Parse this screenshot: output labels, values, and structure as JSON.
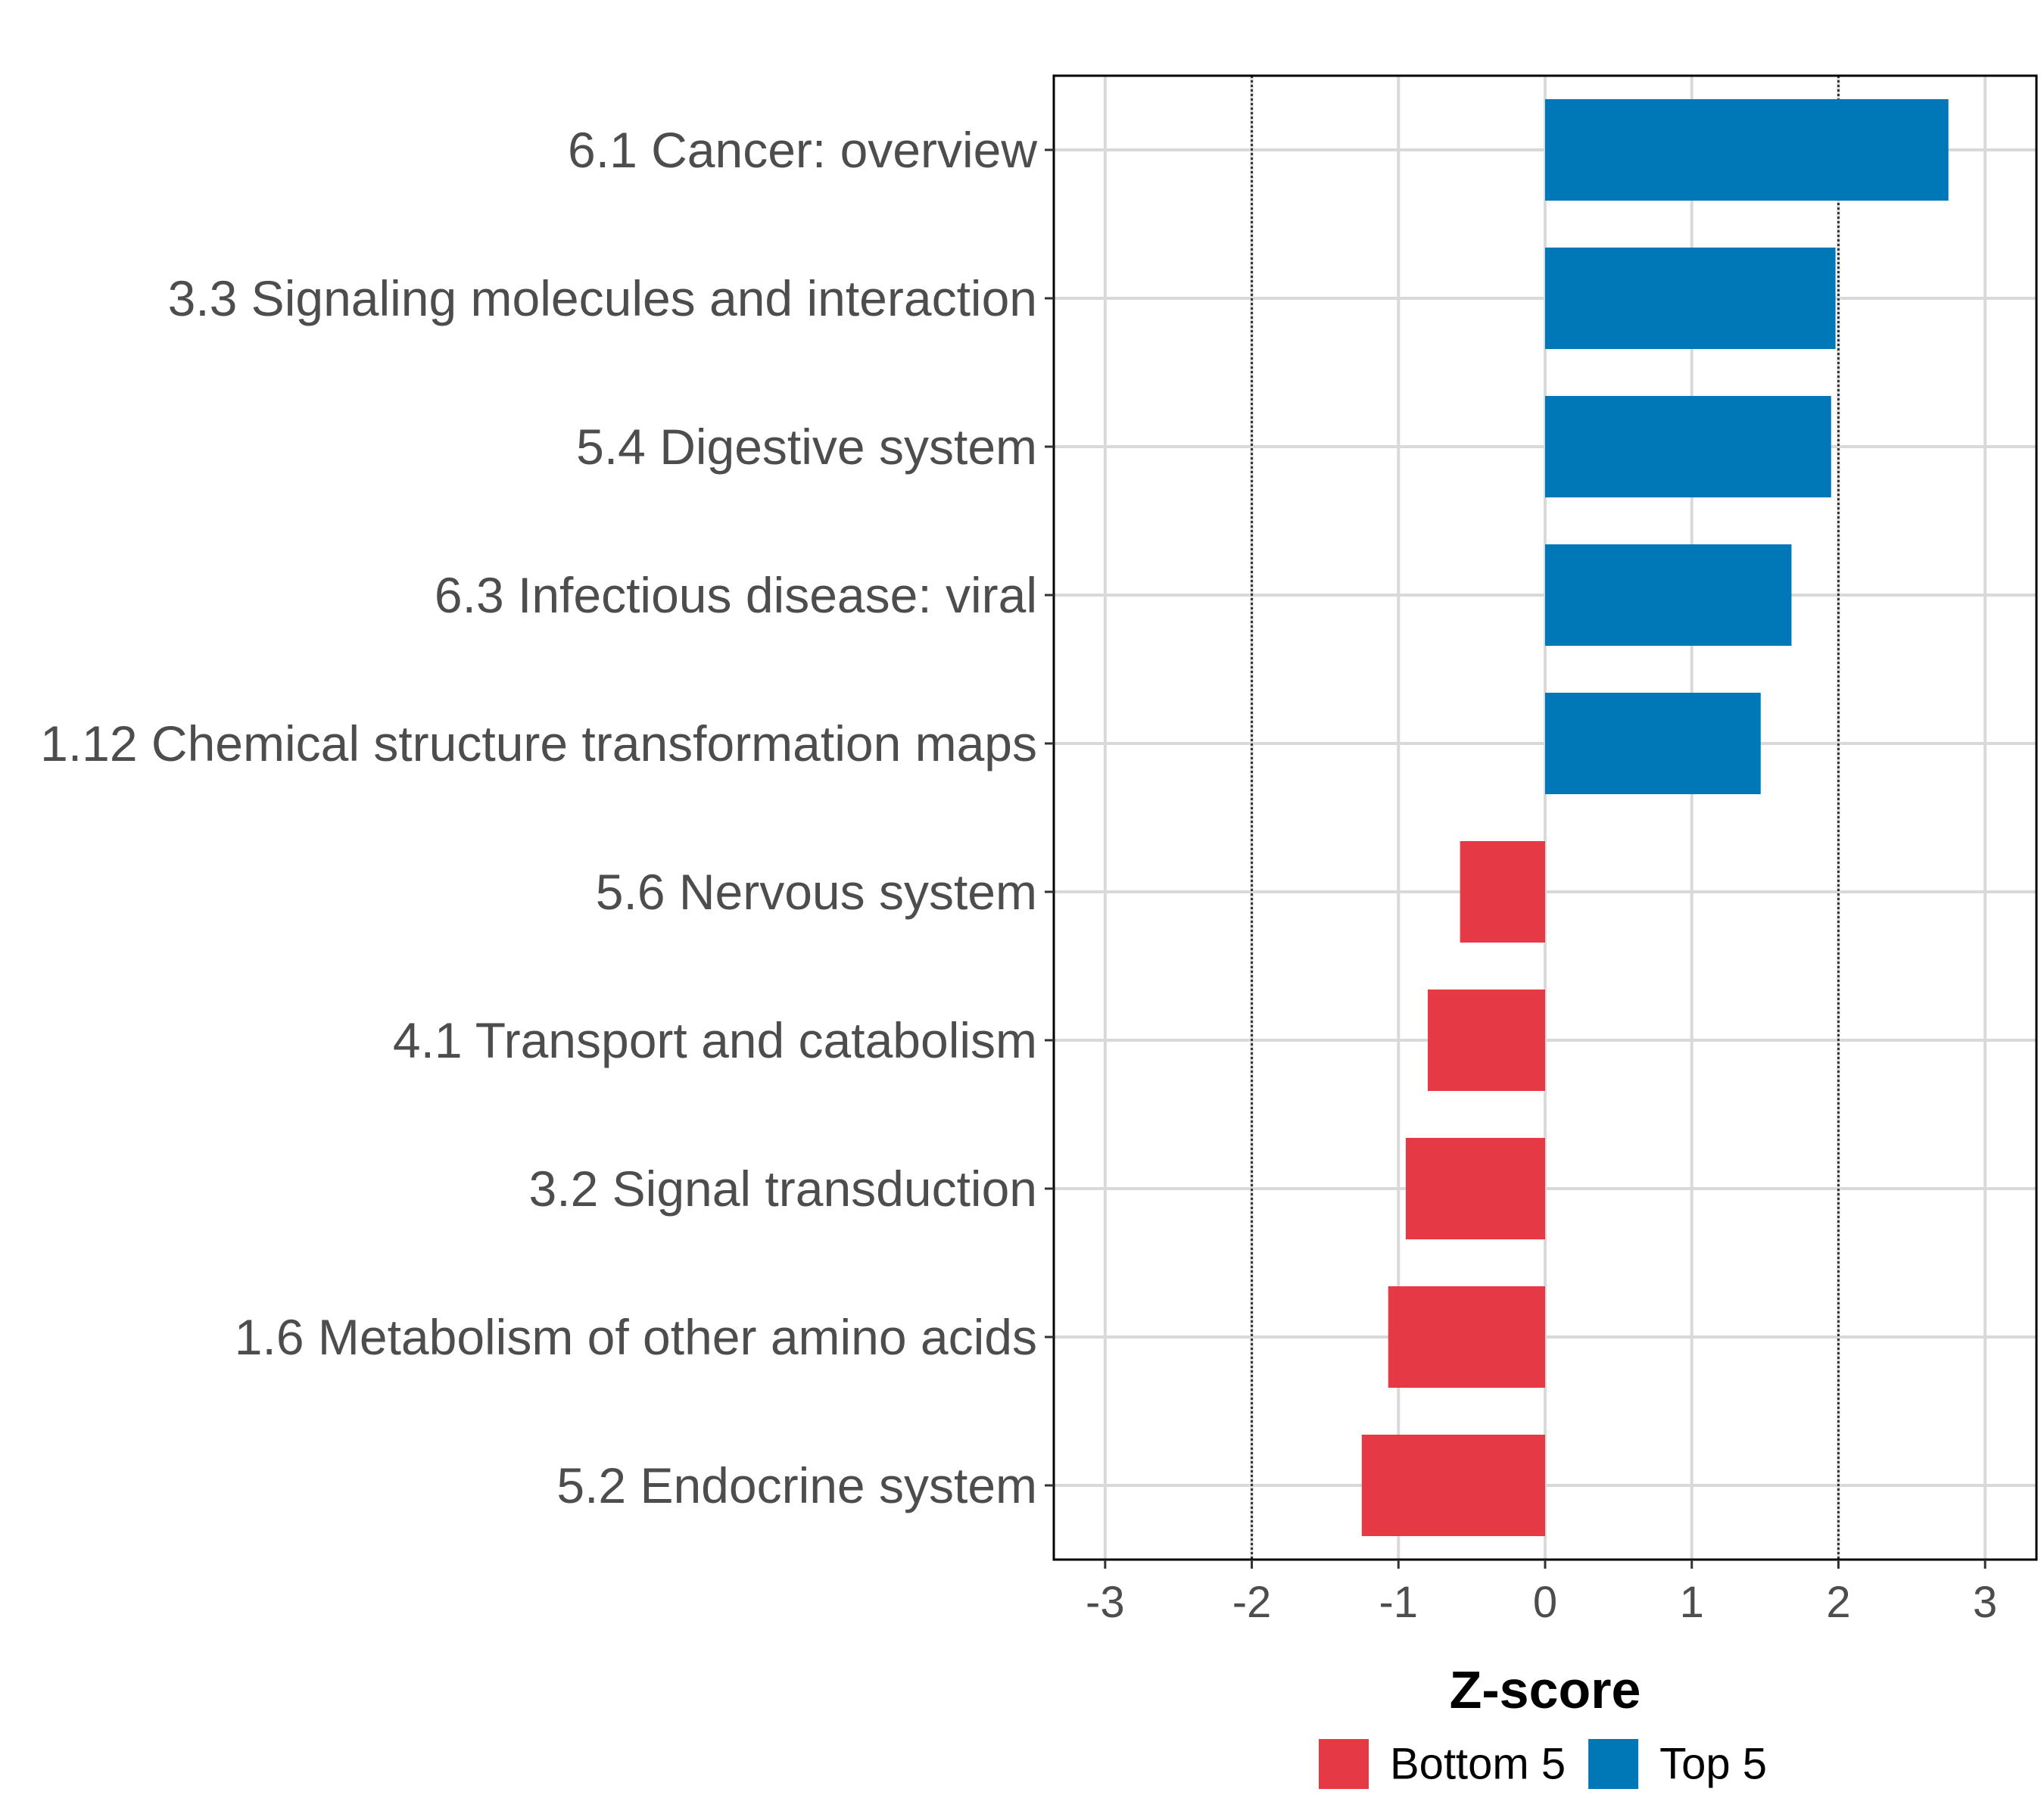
{
  "chart_data": {
    "type": "bar",
    "orientation": "horizontal",
    "title": "",
    "xlabel": "Z-score",
    "ylabel": "",
    "xlim": [
      -3.35,
      3.35
    ],
    "xticks": [
      -3,
      -2,
      -1,
      0,
      1,
      2,
      3
    ],
    "xtick_labels": [
      "-3",
      "-2",
      "-1",
      "0",
      "1",
      "2",
      "3"
    ],
    "reference_lines": [
      -2,
      2
    ],
    "grid": true,
    "categories": [
      "6.1 Cancer: overview",
      "3.3 Signaling molecules and interaction",
      "5.4 Digestive system",
      "6.3 Infectious disease: viral",
      "1.12 Chemical structure transformation maps",
      "5.6 Nervous system",
      "4.1 Transport and catabolism",
      "3.2 Signal transduction",
      "1.6 Metabolism of other amino acids",
      "5.2 Endocrine system"
    ],
    "values": [
      2.75,
      1.98,
      1.95,
      1.68,
      1.47,
      -0.58,
      -0.8,
      -0.95,
      -1.07,
      -1.25
    ],
    "groups": [
      "Top 5",
      "Top 5",
      "Top 5",
      "Top 5",
      "Top 5",
      "Bottom 5",
      "Bottom 5",
      "Bottom 5",
      "Bottom 5",
      "Bottom 5"
    ],
    "legend": {
      "position": "bottom",
      "entries": [
        {
          "label": "Bottom 5",
          "color": "#e63946"
        },
        {
          "label": "Top 5",
          "color": "#0077b6"
        }
      ]
    },
    "colors": {
      "Top 5": "#0077b6",
      "Bottom 5": "#e63946"
    }
  }
}
